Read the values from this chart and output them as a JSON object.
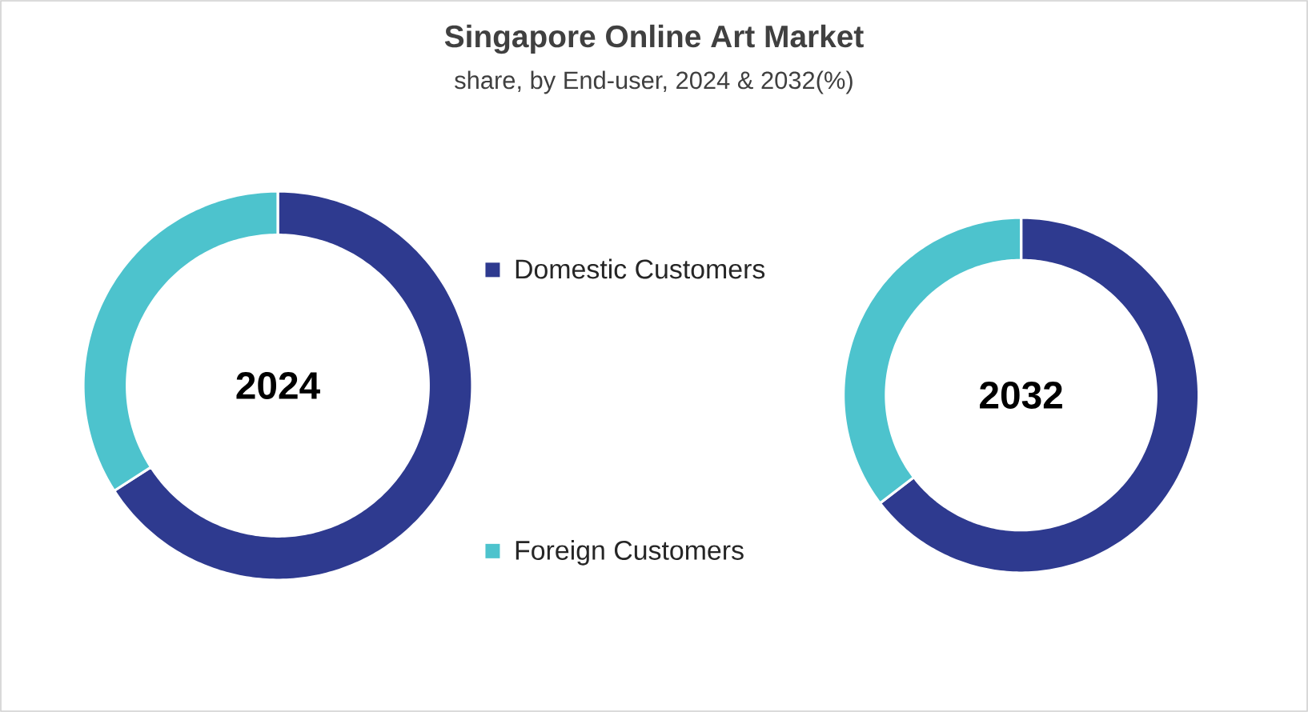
{
  "chart_data": [
    {
      "type": "donut",
      "title": "Singapore Online Art Market",
      "subtitle": "share, by End-user, 2024 & 2032(%)",
      "categories": [
        "Domestic Customers",
        "Foreign Customers"
      ],
      "values": [
        65.9,
        34.1
      ],
      "colors": [
        "#2e3a8f",
        "#4dc3cd"
      ],
      "annotations": [
        "2024"
      ],
      "legend": "right"
    },
    {
      "type": "donut",
      "categories": [
        null,
        null
      ],
      "values": [
        64.6,
        35.4
      ],
      "colors": [
        "#2e3a8f",
        "#4dc3cd"
      ],
      "annotations": [
        "2032"
      ]
    }
  ]
}
